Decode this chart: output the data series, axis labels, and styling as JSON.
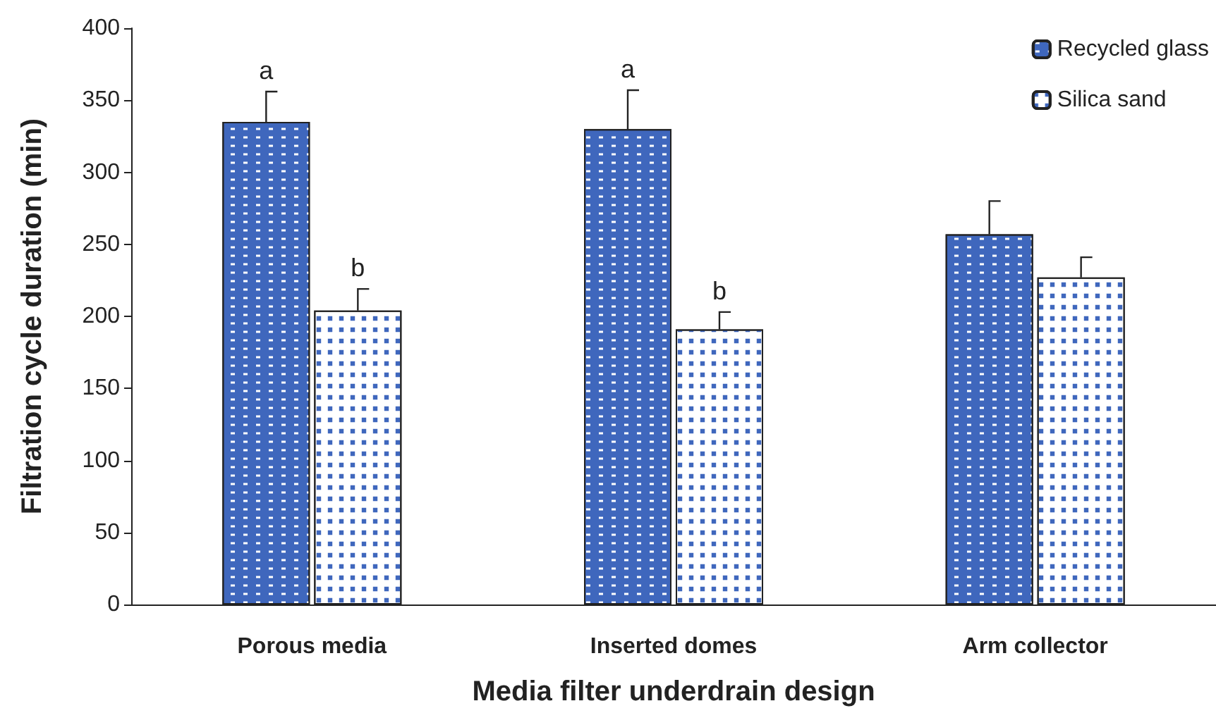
{
  "chart_data": {
    "type": "bar",
    "xlabel": "Media filter underdrain design",
    "ylabel": "Filtration cycle duration (min)",
    "categories": [
      "Porous media",
      "Inserted domes",
      "Arm collector"
    ],
    "series": [
      {
        "name": "Recycled glass",
        "color": "#3f67bd",
        "values": [
          335,
          330,
          257
        ],
        "errors": [
          [
            335,
            356
          ],
          [
            330,
            357
          ],
          [
            257,
            280
          ]
        ]
      },
      {
        "name": "Silica sand",
        "color": "#ffffff",
        "values": [
          204,
          191,
          227
        ],
        "errors": [
          [
            204,
            219
          ],
          [
            191,
            203
          ],
          [
            227,
            241
          ]
        ]
      }
    ],
    "ylim": [
      0,
      400
    ],
    "yticks": [
      0,
      50,
      100,
      150,
      200,
      250,
      300,
      350,
      400
    ],
    "grid": false,
    "legend": "top right",
    "annotations": [
      {
        "text": "a",
        "x": "Porous media",
        "y": 335
      },
      {
        "text": "b",
        "x": "Porous media",
        "y": 204
      },
      {
        "text": "a",
        "x": "Inserted domes",
        "y": 330
      },
      {
        "text": "b",
        "x": "Inserted domes",
        "y": 191
      }
    ]
  }
}
